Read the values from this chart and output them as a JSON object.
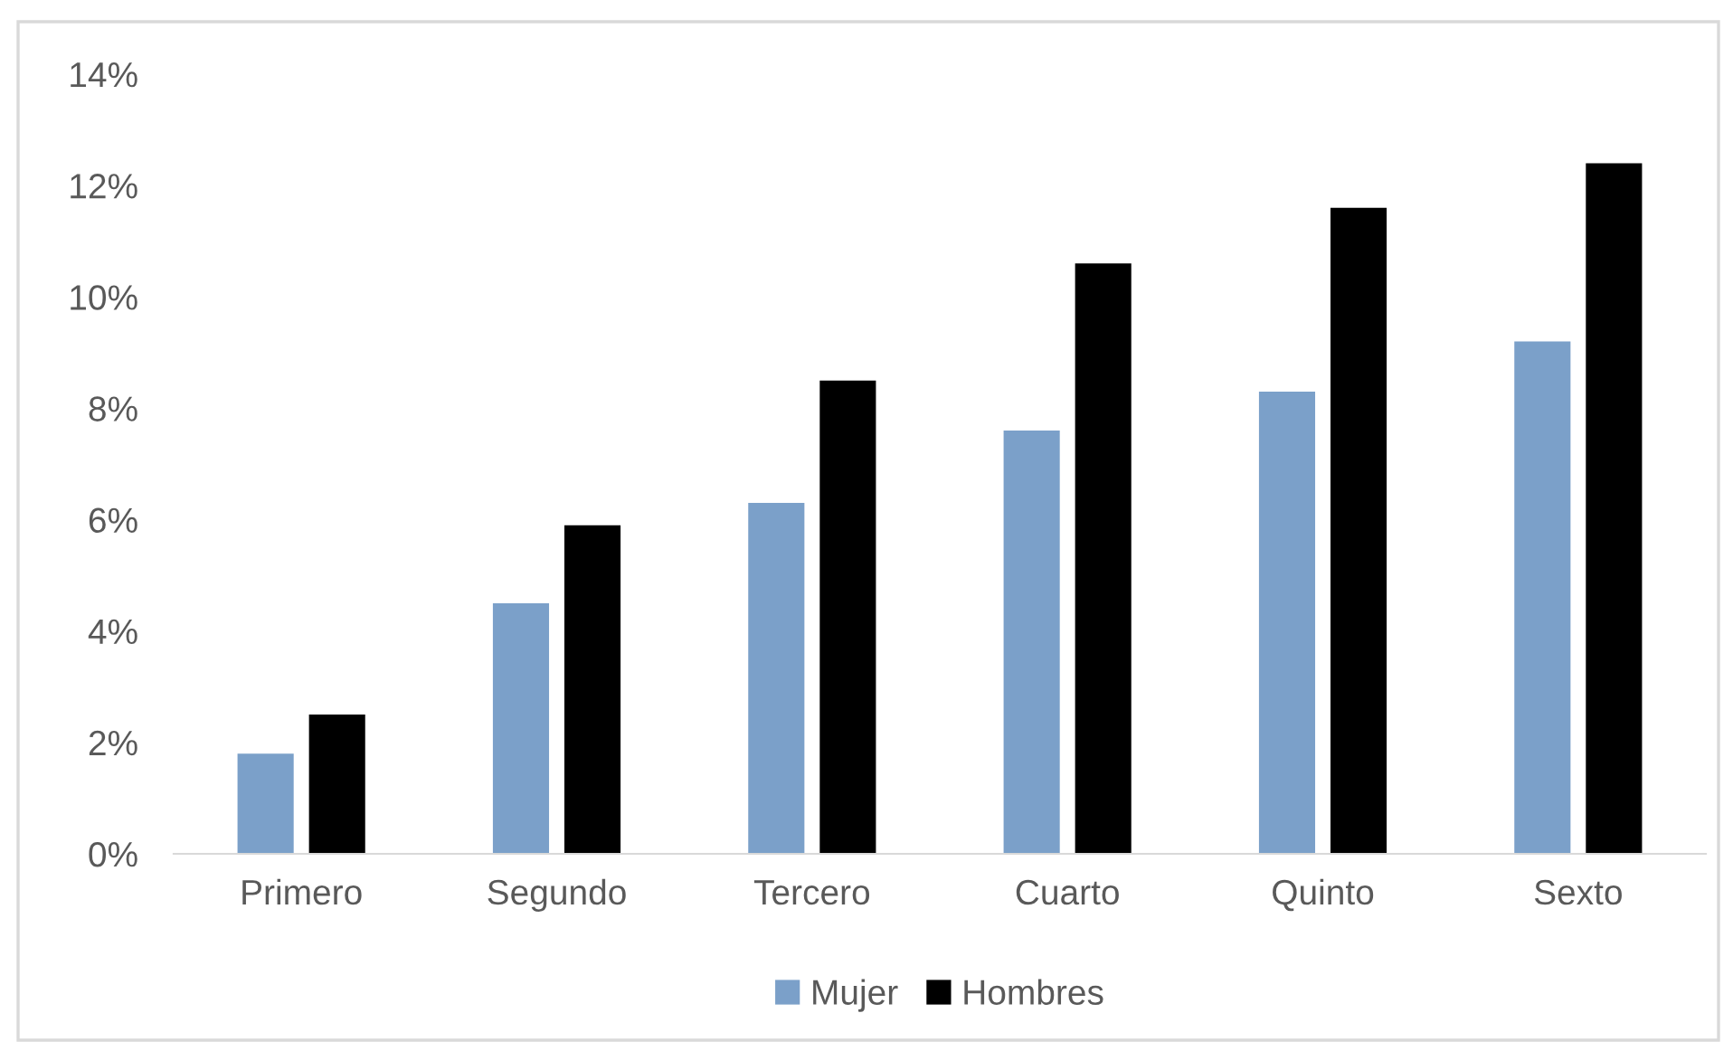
{
  "chart_data": {
    "type": "bar",
    "categories": [
      "Primero",
      "Segundo",
      "Tercero",
      "Cuarto",
      "Quinto",
      "Sexto"
    ],
    "series": [
      {
        "name": "Mujer",
        "color": "#7ba0c9",
        "values": [
          1.8,
          4.5,
          6.3,
          7.6,
          8.3,
          9.2
        ]
      },
      {
        "name": "Hombres",
        "color": "#000000",
        "values": [
          2.5,
          5.9,
          8.5,
          10.6,
          11.6,
          12.4
        ]
      }
    ],
    "ylim": [
      0,
      14
    ],
    "yticks": [
      {
        "value": 0,
        "label": "0%"
      },
      {
        "value": 2,
        "label": "2%"
      },
      {
        "value": 4,
        "label": "4%"
      },
      {
        "value": 6,
        "label": "6%"
      },
      {
        "value": 8,
        "label": "8%"
      },
      {
        "value": 10,
        "label": "10%"
      },
      {
        "value": 12,
        "label": "12%"
      },
      {
        "value": 14,
        "label": "14%"
      }
    ],
    "grid": false,
    "legend": "bottom"
  }
}
